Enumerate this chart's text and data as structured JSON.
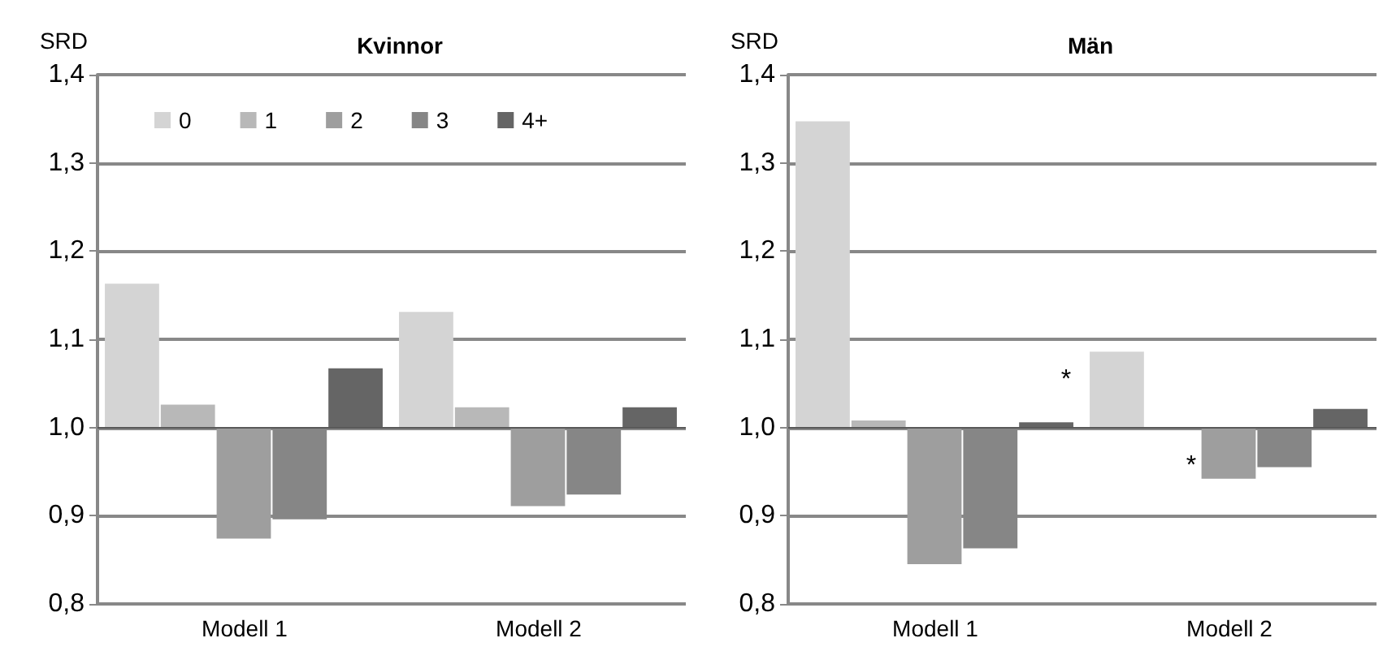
{
  "chart_data": [
    {
      "type": "bar",
      "title": "Kvinnor",
      "ylabel": "SRD",
      "categories": [
        "Modell 1",
        "Modell 2"
      ],
      "series": [
        {
          "name": "0",
          "color": "#d4d4d4",
          "base": [
            1,
            1
          ],
          "values": [
            0.163,
            0.131
          ]
        },
        {
          "name": "1",
          "color": "#b8b8b8",
          "base": [
            1,
            1
          ],
          "values": [
            0.026,
            0.023
          ]
        },
        {
          "name": "2",
          "color": "#9e9e9e",
          "base": [
            1,
            1
          ],
          "values": [
            -0.126,
            -0.089
          ]
        },
        {
          "name": "3",
          "color": "#868686",
          "base": [
            1,
            1
          ],
          "values": [
            -0.104,
            -0.076
          ]
        },
        {
          "name": "4+",
          "color": "#656565",
          "base": [
            1,
            1
          ],
          "values": [
            0.067,
            0.023
          ]
        }
      ],
      "ylim": [
        0.8,
        1.4
      ],
      "yticks": [
        {
          "value": 0.8,
          "label": "0,8"
        },
        {
          "value": 0.9,
          "label": "0,9"
        },
        {
          "value": 1.0,
          "label": "1,0"
        },
        {
          "value": 1.1,
          "label": "1,1"
        },
        {
          "value": 1.2,
          "label": "1,2"
        },
        {
          "value": 1.3,
          "label": "1,3"
        },
        {
          "value": 1.4,
          "label": "1,4"
        }
      ],
      "ref_lines": [
        {
          "axis": "y",
          "value": 1,
          "color": "#595959"
        }
      ],
      "grid": "y",
      "legend": "top"
    },
    {
      "type": "bar",
      "title": "Män",
      "ylabel": "SRD",
      "categories": [
        "Modell 1",
        "Modell 2"
      ],
      "series": [
        {
          "color": "#d4d4d4",
          "base": [
            1,
            1
          ],
          "values": [
            0.347,
            0.086
          ]
        },
        {
          "color": "#b8b8b8",
          "base": [
            1,
            null
          ],
          "values": [
            0.008,
            null
          ]
        },
        {
          "color": "#9e9e9e",
          "base": [
            1,
            1
          ],
          "values": [
            -0.155,
            -0.058
          ]
        },
        {
          "color": "#868686",
          "base": [
            1,
            1
          ],
          "values": [
            -0.137,
            -0.045
          ]
        },
        {
          "color": "#656565",
          "base": [
            1,
            1
          ],
          "values": [
            0.006,
            0.021
          ]
        }
      ],
      "ylim": [
        0.8,
        1.4
      ],
      "yticks": [
        {
          "value": 0.8,
          "label": "0,8"
        },
        {
          "value": 0.9,
          "label": "0,9"
        },
        {
          "value": 1.0,
          "label": "1,0"
        },
        {
          "value": 1.1,
          "label": "1,1"
        },
        {
          "value": 1.2,
          "label": "1,2"
        },
        {
          "value": 1.3,
          "label": "1,3"
        },
        {
          "value": 1.4,
          "label": "1,4"
        }
      ],
      "ref_lines": [
        {
          "axis": "y",
          "value": 1,
          "color": "#595959"
        }
      ],
      "annotations": [
        "*",
        "*"
      ],
      "grid": "y",
      "legend": false
    }
  ]
}
